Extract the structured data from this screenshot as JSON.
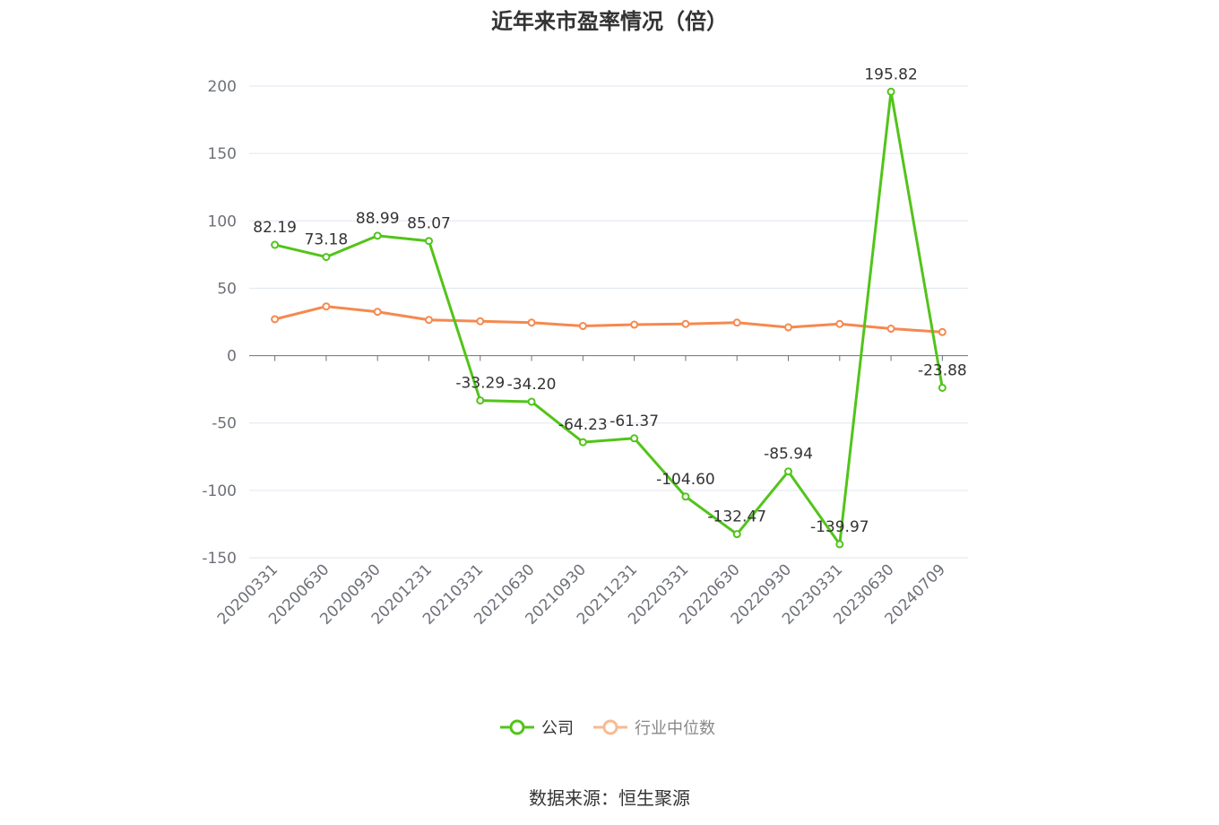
{
  "chart_data": {
    "type": "line",
    "title": "近年来市盈率情况（倍）",
    "x": [
      "20200331",
      "20200630",
      "20200930",
      "20201231",
      "20210331",
      "20210630",
      "20210930",
      "20211231",
      "20220331",
      "20220630",
      "20220930",
      "20230331",
      "20230630",
      "20240709"
    ],
    "series": [
      {
        "name": "公司",
        "color": "#52c41a",
        "values": [
          82.19,
          73.18,
          88.99,
          85.07,
          -33.29,
          -34.2,
          -64.23,
          -61.37,
          -104.6,
          -132.47,
          -85.94,
          -139.97,
          195.82,
          -23.88
        ],
        "labels": [
          "82.19",
          "73.18",
          "88.99",
          "85.07",
          "-33.29",
          "-34.20",
          "-64.23",
          "-61.37",
          "-104.60",
          "-132.47",
          "-85.94",
          "-139.97",
          "195.82",
          "-23.88"
        ]
      },
      {
        "name": "行业中位数",
        "color": "#f5894f",
        "values": [
          27,
          36.5,
          32.5,
          26.5,
          25.5,
          24.5,
          22,
          23,
          23.5,
          24.5,
          21,
          23.5,
          20,
          17.5
        ]
      }
    ],
    "ylim": [
      -150,
      200
    ],
    "yticks": [
      "200",
      "150",
      "100",
      "50",
      "0",
      "-50",
      "-100",
      "-150"
    ],
    "ytick_values": [
      200,
      150,
      100,
      50,
      0,
      -50,
      -100,
      -150
    ],
    "grid": true,
    "legend_position": "bottom-center",
    "source_note": "数据来源：恒生聚源"
  }
}
